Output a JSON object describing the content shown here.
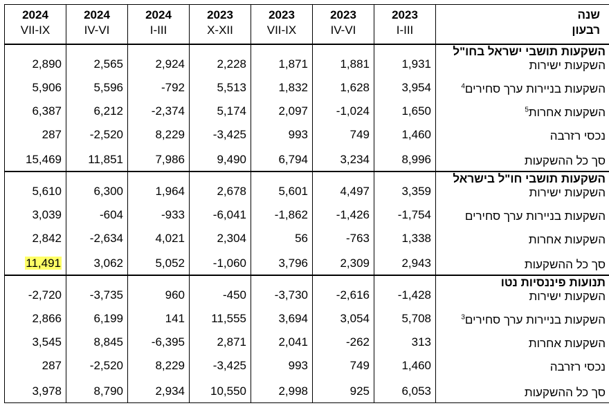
{
  "header": {
    "label_top": "שנה",
    "label_bottom": "רבעון",
    "columns": [
      {
        "year": "2024",
        "quarter": "VII-IX"
      },
      {
        "year": "2024",
        "quarter": "IV-VI"
      },
      {
        "year": "2024",
        "quarter": "I-III"
      },
      {
        "year": "2023",
        "quarter": "X-XII"
      },
      {
        "year": "2023",
        "quarter": "VII-IX"
      },
      {
        "year": "2023",
        "quarter": "IV-VI"
      },
      {
        "year": "2023",
        "quarter": "I-III"
      }
    ]
  },
  "sections": [
    {
      "title": "השקעות תושבי ישראל בחו\"ל",
      "rows": [
        {
          "label": "השקעות ישירות",
          "values": [
            "2,890",
            "2,565",
            "2,924",
            "2,228",
            "1,871",
            "1,881",
            "1,931"
          ]
        },
        {
          "label": "השקעות בניירות ערך סחירים",
          "sup": "4",
          "values": [
            "5,906",
            "5,596",
            "-792",
            "5,513",
            "1,832",
            "1,628",
            "3,954"
          ]
        },
        {
          "label": "השקעות אחרות",
          "sup": "5",
          "values": [
            "6,387",
            "6,212",
            "-2,374",
            "5,174",
            "2,097",
            "-1,024",
            "1,650"
          ]
        },
        {
          "label": "נכסי רזרבה",
          "values": [
            "287",
            "-2,520",
            "8,229",
            "-3,425",
            "993",
            "749",
            "1,460"
          ]
        },
        {
          "label": "סך כל ההשקעות",
          "values": [
            "15,469",
            "11,851",
            "7,986",
            "9,490",
            "6,794",
            "3,234",
            "8,996"
          ]
        }
      ]
    },
    {
      "title": "השקעות תושבי חו\"ל בישראל",
      "rows": [
        {
          "label": "השקעות ישירות",
          "values": [
            "5,610",
            "6,300",
            "1,964",
            "2,678",
            "5,601",
            "4,497",
            "3,359"
          ]
        },
        {
          "label": "השקעות בניירות ערך סחירים",
          "values": [
            "3,039",
            "-604",
            "-933",
            "-6,041",
            "-1,862",
            "-1,426",
            "-1,754"
          ]
        },
        {
          "label": "השקעות אחרות",
          "values": [
            "2,842",
            "-2,634",
            "4,021",
            "2,304",
            "56",
            "-763",
            "1,338"
          ]
        },
        {
          "label": "סך כל ההשקעות",
          "values": [
            "11,491",
            "3,062",
            "5,052",
            "-1,060",
            "3,796",
            "2,309",
            "2,943"
          ],
          "highlight_col": 0
        }
      ]
    },
    {
      "title": "תנועות פיננסיות נטו",
      "rows": [
        {
          "label": "השקעות ישירות",
          "values": [
            "-2,720",
            "-3,735",
            "960",
            "-450",
            "-3,730",
            "-2,616",
            "-1,428"
          ]
        },
        {
          "label": "השקעות בניירות ערך סחירים",
          "sup": "3",
          "values": [
            "2,866",
            "6,199",
            "141",
            "11,555",
            "3,694",
            "3,054",
            "5,708"
          ]
        },
        {
          "label": "השקעות אחרות",
          "values": [
            "3,545",
            "8,845",
            "-6,395",
            "2,871",
            "2,041",
            "-262",
            "313"
          ]
        },
        {
          "label": "נכסי רזרבה",
          "values": [
            "287",
            "-2,520",
            "8,229",
            "-3,425",
            "993",
            "749",
            "1,460"
          ]
        },
        {
          "label": "סך כל ההשקעות",
          "values": [
            "3,978",
            "8,790",
            "2,934",
            "10,550",
            "2,998",
            "925",
            "6,053"
          ]
        }
      ]
    }
  ],
  "colors": {
    "highlight": "#ffff66"
  }
}
